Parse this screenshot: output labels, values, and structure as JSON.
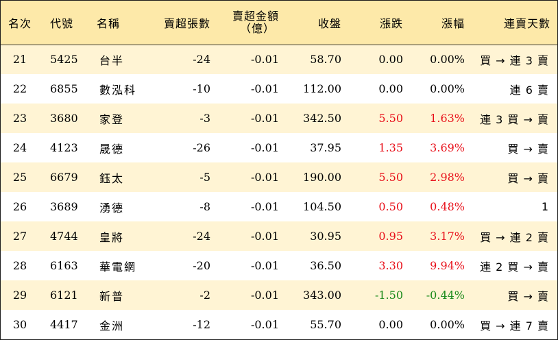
{
  "headers": {
    "rank": "名次",
    "code": "代號",
    "name": "名稱",
    "net_sell_lots": "賣超張數",
    "net_sell_amount_line1": "賣超金額",
    "net_sell_amount_line2": "（億）",
    "close": "收盤",
    "change": "漲跌",
    "change_pct": "漲幅",
    "streak": "連賣天數"
  },
  "colors": {
    "header_bg": "#fde9a9",
    "stripe_bg": "#fff4d4",
    "up": "#e8101a",
    "down": "#1a8a1a"
  },
  "rows": [
    {
      "rank": "21",
      "code": "5425",
      "name": "台半",
      "lots": "-24",
      "amount": "-0.01",
      "close": "58.70",
      "change": "0.00",
      "pct": "0.00%",
      "streak": "買 → 連 3 賣",
      "dir": "flat"
    },
    {
      "rank": "22",
      "code": "6855",
      "name": "數泓科",
      "lots": "-10",
      "amount": "-0.01",
      "close": "112.00",
      "change": "0.00",
      "pct": "0.00%",
      "streak": "連 6 賣",
      "dir": "flat"
    },
    {
      "rank": "23",
      "code": "3680",
      "name": "家登",
      "lots": "-3",
      "amount": "-0.01",
      "close": "342.50",
      "change": "5.50",
      "pct": "1.63%",
      "streak": "連 3 買 → 賣",
      "dir": "up"
    },
    {
      "rank": "24",
      "code": "4123",
      "name": "晟德",
      "lots": "-26",
      "amount": "-0.01",
      "close": "37.95",
      "change": "1.35",
      "pct": "3.69%",
      "streak": "買 → 賣",
      "dir": "up"
    },
    {
      "rank": "25",
      "code": "6679",
      "name": "鈺太",
      "lots": "-5",
      "amount": "-0.01",
      "close": "190.00",
      "change": "5.50",
      "pct": "2.98%",
      "streak": "買 → 賣",
      "dir": "up"
    },
    {
      "rank": "26",
      "code": "3689",
      "name": "湧德",
      "lots": "-8",
      "amount": "-0.01",
      "close": "104.50",
      "change": "0.50",
      "pct": "0.48%",
      "streak": "1",
      "dir": "up"
    },
    {
      "rank": "27",
      "code": "4744",
      "name": "皇將",
      "lots": "-24",
      "amount": "-0.01",
      "close": "30.95",
      "change": "0.95",
      "pct": "3.17%",
      "streak": "買 → 連 2 賣",
      "dir": "up"
    },
    {
      "rank": "28",
      "code": "6163",
      "name": "華電網",
      "lots": "-20",
      "amount": "-0.01",
      "close": "36.50",
      "change": "3.30",
      "pct": "9.94%",
      "streak": "連 2 買 → 賣",
      "dir": "up"
    },
    {
      "rank": "29",
      "code": "6121",
      "name": "新普",
      "lots": "-2",
      "amount": "-0.01",
      "close": "343.00",
      "change": "-1.50",
      "pct": "-0.44%",
      "streak": "買 → 賣",
      "dir": "down"
    },
    {
      "rank": "30",
      "code": "4417",
      "name": "金洲",
      "lots": "-12",
      "amount": "-0.01",
      "close": "55.70",
      "change": "0.00",
      "pct": "0.00%",
      "streak": "買 → 連 7 賣",
      "dir": "flat"
    }
  ]
}
